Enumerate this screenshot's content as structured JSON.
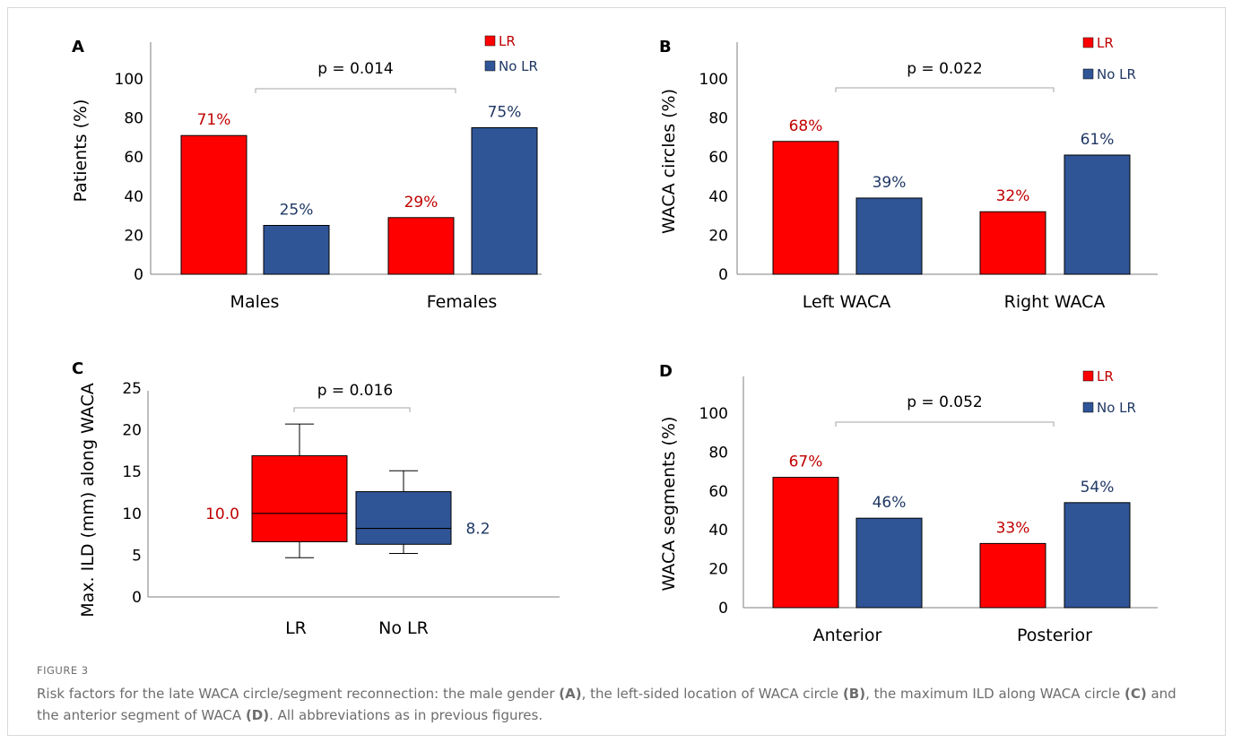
{
  "colors": {
    "lr": "#ff0000",
    "no_lr": "#2f5597",
    "lr_text": "#c00000",
    "no_lr_text": "#1f3864",
    "axis": "#7f7f7f",
    "bracket": "#a6a6a6"
  },
  "chart_data": [
    {
      "panel": "A",
      "type": "bar",
      "ylabel": "Patients (%)",
      "ylim": [
        0,
        100
      ],
      "yticks": [
        0,
        20,
        40,
        60,
        80,
        100
      ],
      "categories": [
        "Males",
        "Females"
      ],
      "series": [
        {
          "name": "LR",
          "values": [
            71,
            29
          ],
          "labels": [
            "71%",
            "29%"
          ]
        },
        {
          "name": "No LR",
          "values": [
            25,
            75
          ],
          "labels": [
            "25%",
            "75%"
          ]
        }
      ],
      "annotation": "p = 0.014",
      "legend": "top-right"
    },
    {
      "panel": "B",
      "type": "bar",
      "ylabel": "WACA circles (%)",
      "ylim": [
        0,
        100
      ],
      "yticks": [
        0,
        20,
        40,
        60,
        80,
        100
      ],
      "categories": [
        "Left WACA",
        "Right WACA"
      ],
      "series": [
        {
          "name": "LR",
          "values": [
            68,
            32
          ],
          "labels": [
            "68%",
            "32%"
          ]
        },
        {
          "name": "No LR",
          "values": [
            39,
            61
          ],
          "labels": [
            "39%",
            "61%"
          ]
        }
      ],
      "annotation": "p = 0.022",
      "legend": "top-right"
    },
    {
      "panel": "C",
      "type": "box",
      "ylabel": "Max. ILD (mm) along WACA",
      "ylim": [
        0,
        25
      ],
      "yticks": [
        0,
        5,
        10,
        15,
        20,
        25
      ],
      "categories": [
        "LR",
        "No LR"
      ],
      "boxes": [
        {
          "name": "LR",
          "min": 4.7,
          "q1": 6.6,
          "median": 10.0,
          "q3": 16.9,
          "max": 20.7,
          "label": "10.0"
        },
        {
          "name": "No LR",
          "min": 5.2,
          "q1": 6.3,
          "median": 8.2,
          "q3": 12.6,
          "max": 15.1,
          "label": "8.2"
        }
      ],
      "annotation": "p = 0.016"
    },
    {
      "panel": "D",
      "type": "bar",
      "ylabel": "WACA segments (%)",
      "ylim": [
        0,
        100
      ],
      "yticks": [
        0,
        20,
        40,
        60,
        80,
        100
      ],
      "categories": [
        "Anterior",
        "Posterior"
      ],
      "series": [
        {
          "name": "LR",
          "values": [
            67,
            33
          ],
          "labels": [
            "67%",
            "33%"
          ]
        },
        {
          "name": "No LR",
          "values": [
            46,
            54
          ],
          "labels": [
            "46%",
            "54%"
          ]
        }
      ],
      "annotation": "p = 0.052",
      "legend": "top-right"
    }
  ],
  "caption": {
    "label": "FIGURE 3",
    "parts": [
      "Risk factors for the late WACA circle/segment reconnection: the male gender ",
      "(A)",
      ", the left-sided location of WACA circle ",
      "(B)",
      ", the maximum ILD along WACA circle ",
      "(C)",
      " and the anterior segment of WACA ",
      "(D)",
      ". All abbreviations as in previous figures."
    ]
  }
}
